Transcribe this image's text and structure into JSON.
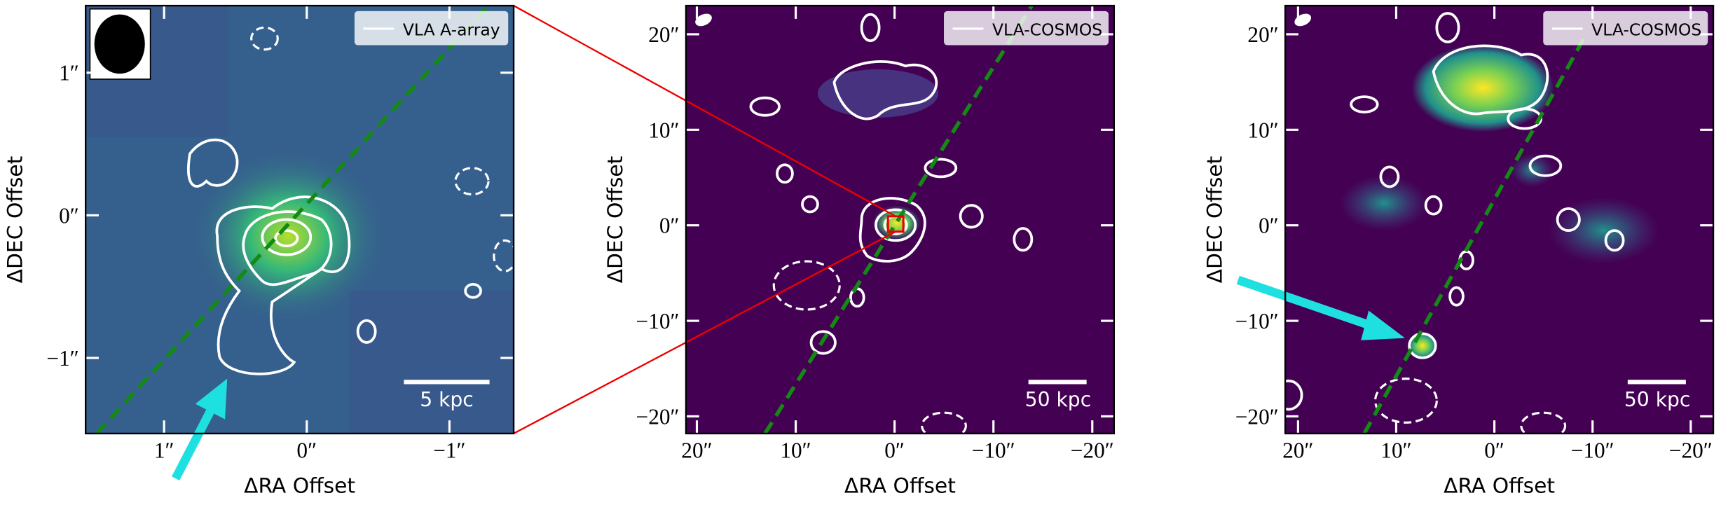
{
  "chart_data": [
    {
      "type": "image",
      "xlabel": "ΔRA Offset",
      "ylabel": "ΔDEC Offset",
      "legend": "VLA A-array",
      "scalebar": "5 kpc",
      "xlim": [
        1.55,
        -1.45
      ],
      "ylim": [
        -1.53,
        1.47
      ],
      "xticks": [
        {
          "value": 1,
          "label": "1″"
        },
        {
          "value": 0,
          "label": "0″"
        },
        {
          "value": -1,
          "label": "−1″"
        }
      ],
      "yticks": [
        {
          "value": 1,
          "label": "1″"
        },
        {
          "value": 0,
          "label": "0″"
        },
        {
          "value": -1,
          "label": "−1″"
        }
      ]
    },
    {
      "type": "image",
      "xlabel": "ΔRA Offset",
      "ylabel": "ΔDEC Offset",
      "legend": "VLA-COSMOS",
      "scalebar": "50 kpc",
      "xlim": [
        21.1,
        -22.2
      ],
      "ylim": [
        -21.8,
        23.0
      ],
      "xticks": [
        {
          "value": 20,
          "label": "20″"
        },
        {
          "value": 10,
          "label": "10″"
        },
        {
          "value": 0,
          "label": "0″"
        },
        {
          "value": -10,
          "label": "−10″"
        },
        {
          "value": -20,
          "label": "−20″"
        }
      ],
      "yticks": [
        {
          "value": 20,
          "label": "20″"
        },
        {
          "value": 10,
          "label": "10″"
        },
        {
          "value": 0,
          "label": "0″"
        },
        {
          "value": -10,
          "label": "−10″"
        },
        {
          "value": -20,
          "label": "−20″"
        }
      ]
    },
    {
      "type": "image",
      "xlabel": "ΔRA Offset",
      "ylabel": "ΔDEC Offset",
      "legend": "VLA-COSMOS",
      "scalebar": "50 kpc",
      "xlim": [
        21.3,
        -22.3
      ],
      "ylim": [
        -21.8,
        23.0
      ],
      "xticks": [
        {
          "value": 20,
          "label": "20″"
        },
        {
          "value": 10,
          "label": "10″"
        },
        {
          "value": 0,
          "label": "0″"
        },
        {
          "value": -10,
          "label": "−10″"
        },
        {
          "value": -20,
          "label": "−20″"
        }
      ],
      "yticks": [
        {
          "value": 20,
          "label": "20″"
        },
        {
          "value": 10,
          "label": "10″"
        },
        {
          "value": 0,
          "label": "0″"
        },
        {
          "value": -10,
          "label": "−10″"
        },
        {
          "value": -20,
          "label": "−20″"
        }
      ]
    }
  ]
}
